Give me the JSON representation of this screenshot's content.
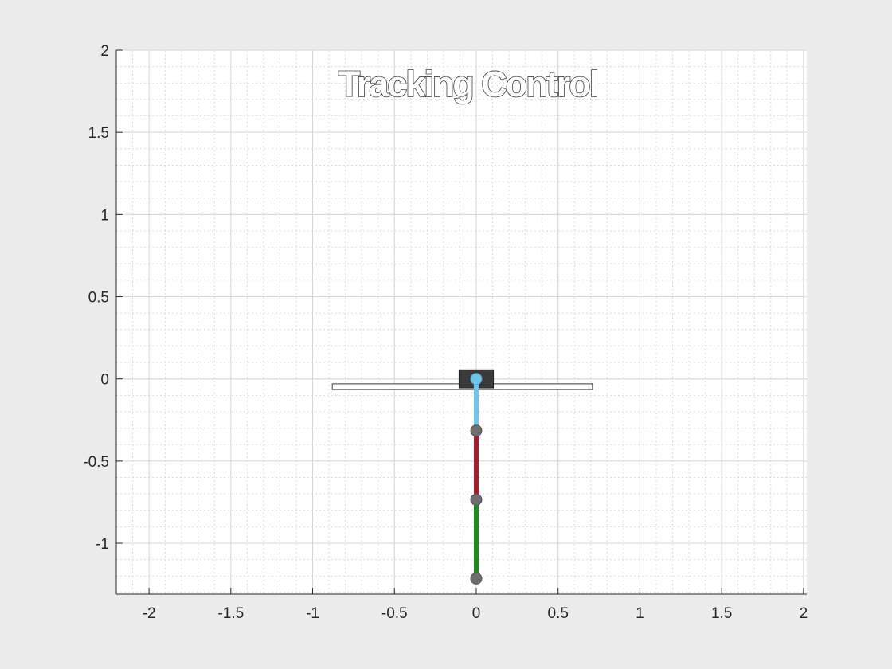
{
  "chart_data": {
    "type": "line",
    "title": "Tracking Control",
    "xlabel": "",
    "ylabel": "",
    "xlim": [
      -2.2,
      2.02
    ],
    "ylim": [
      -1.31,
      2.0
    ],
    "xticks": [
      -2,
      -1.5,
      -1,
      -0.5,
      0,
      0.5,
      1,
      1.5,
      2
    ],
    "xtick_labels": [
      "-2",
      "-1.5",
      "-1",
      "-0.5",
      "0",
      "0.5",
      "1",
      "1.5",
      "2"
    ],
    "yticks": [
      -1,
      -0.5,
      0,
      0.5,
      1,
      1.5,
      2
    ],
    "ytick_labels": [
      "-1",
      "-0.5",
      "0",
      "0.5",
      "1",
      "1.5",
      "2"
    ],
    "grid": true,
    "minor_grid": true,
    "track": {
      "x_start": -0.88,
      "x_end": 0.71,
      "y_top": -0.03,
      "y_bottom": -0.065,
      "color": "#ffffff"
    },
    "cart": {
      "x_center": 0.0,
      "width": 0.21,
      "y_top": 0.055,
      "y_bottom": -0.055,
      "color": "#3a3a3a"
    },
    "links": [
      {
        "name": "link 1",
        "x": [
          0,
          0
        ],
        "y": [
          0,
          -0.315
        ],
        "color": "#6ec6ea"
      },
      {
        "name": "link 2",
        "x": [
          0,
          0
        ],
        "y": [
          -0.315,
          -0.735
        ],
        "color": "#a51d2d"
      },
      {
        "name": "link 3",
        "x": [
          0,
          0
        ],
        "y": [
          -0.735,
          -1.215
        ],
        "color": "#1f8a1f"
      }
    ],
    "joints": [
      {
        "x": 0,
        "y": 0,
        "color": "#6ec6ea"
      },
      {
        "x": 0,
        "y": -0.315,
        "color": "#6e6e6e"
      },
      {
        "x": 0,
        "y": -0.735,
        "color": "#6e6e6e"
      },
      {
        "x": 0,
        "y": -1.215,
        "color": "#6e6e6e"
      }
    ]
  }
}
